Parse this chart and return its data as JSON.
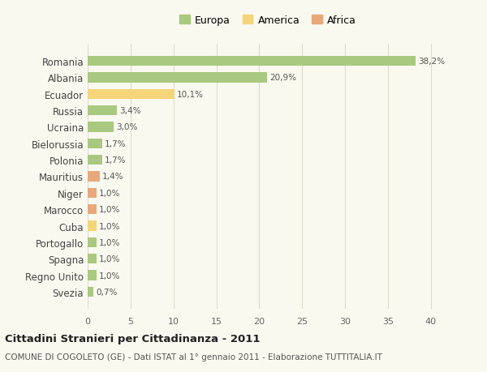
{
  "countries": [
    "Romania",
    "Albania",
    "Ecuador",
    "Russia",
    "Ucraina",
    "Bielorussia",
    "Polonia",
    "Mauritius",
    "Niger",
    "Marocco",
    "Cuba",
    "Portogallo",
    "Spagna",
    "Regno Unito",
    "Svezia"
  ],
  "values": [
    38.2,
    20.9,
    10.1,
    3.4,
    3.0,
    1.7,
    1.7,
    1.4,
    1.0,
    1.0,
    1.0,
    1.0,
    1.0,
    1.0,
    0.7
  ],
  "labels": [
    "38,2%",
    "20,9%",
    "10,1%",
    "3,4%",
    "3,0%",
    "1,7%",
    "1,7%",
    "1,4%",
    "1,0%",
    "1,0%",
    "1,0%",
    "1,0%",
    "1,0%",
    "1,0%",
    "0,7%"
  ],
  "continents": [
    "Europa",
    "Europa",
    "America",
    "Europa",
    "Europa",
    "Europa",
    "Europa",
    "Africa",
    "Africa",
    "Africa",
    "America",
    "Europa",
    "Europa",
    "Europa",
    "Europa"
  ],
  "colors": {
    "Europa": "#a8c97f",
    "America": "#f5d57a",
    "Africa": "#e8a87c"
  },
  "legend_order": [
    "Europa",
    "America",
    "Africa"
  ],
  "legend_colors": [
    "#a8c97f",
    "#f5d57a",
    "#e8a87c"
  ],
  "title": "Cittadini Stranieri per Cittadinanza - 2011",
  "subtitle": "COMUNE DI COGOLETO (GE) - Dati ISTAT al 1° gennaio 2011 - Elaborazione TUTTITALIA.IT",
  "xlim": [
    0,
    42
  ],
  "xticks": [
    0,
    5,
    10,
    15,
    20,
    25,
    30,
    35,
    40
  ],
  "background_color": "#f9f9f0",
  "grid_color": "#ddddcc"
}
